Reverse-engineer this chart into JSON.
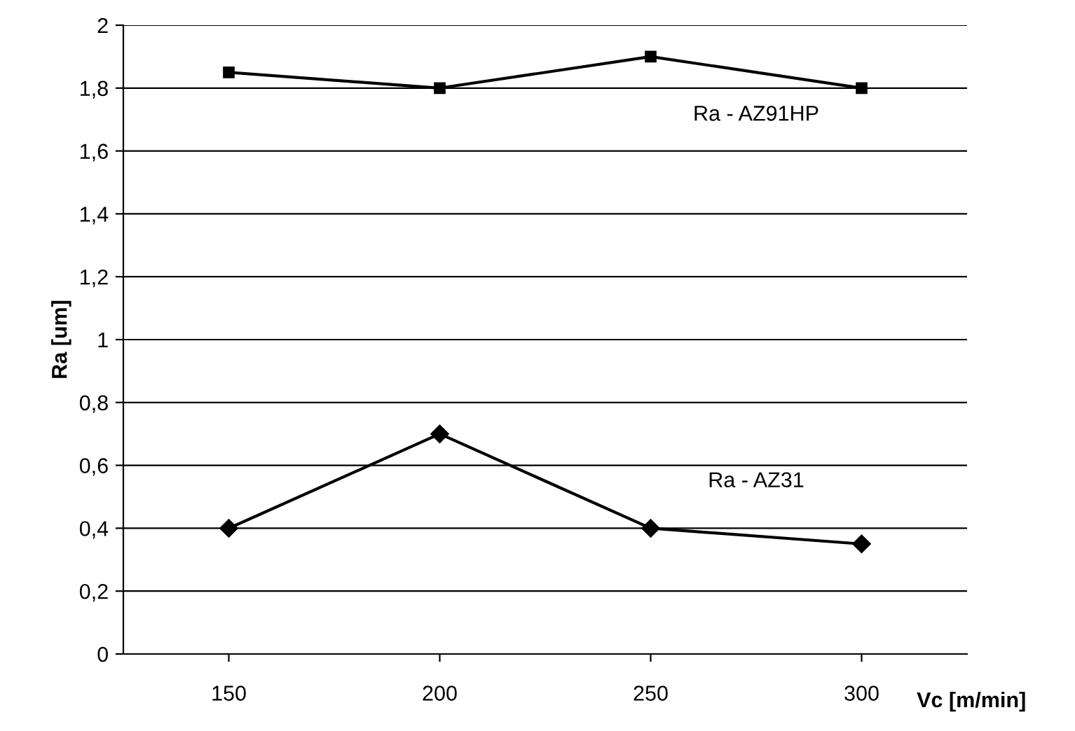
{
  "chart_data": {
    "type": "line",
    "xlabel": "Vc [m/min]",
    "ylabel": "Ra [um]",
    "categories": [
      "150",
      "200",
      "250",
      "300"
    ],
    "series": [
      {
        "name": "Ra - AZ91HP",
        "color": "#000000",
        "marker": "square",
        "values": [
          1.85,
          1.8,
          1.9,
          1.8
        ]
      },
      {
        "name": "Ra - AZ31",
        "color": "#000000",
        "marker": "diamond",
        "values": [
          0.4,
          0.7,
          0.4,
          0.35
        ]
      }
    ],
    "ylim": [
      0,
      2
    ],
    "yticks": [
      0,
      {
        "value": 0.2,
        "label": "0,2"
      },
      {
        "value": 0.4,
        "label": "0,4"
      },
      {
        "value": 0.6,
        "label": "0,6"
      },
      {
        "value": 0.8,
        "label": "0,8"
      },
      1,
      {
        "value": 1.2,
        "label": "1,2"
      },
      {
        "value": 1.4,
        "label": "1,4"
      },
      {
        "value": 1.6,
        "label": "1,6"
      },
      {
        "value": 1.8,
        "label": "1,8"
      },
      2
    ],
    "grid": "y",
    "legend": false,
    "line_style": "solid"
  }
}
